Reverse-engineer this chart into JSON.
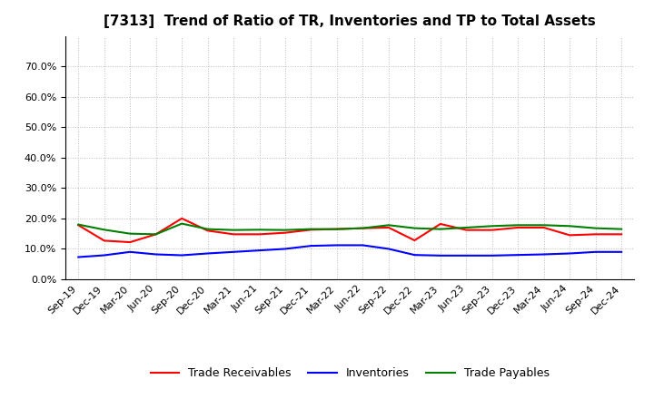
{
  "title": "[7313]  Trend of Ratio of TR, Inventories and TP to Total Assets",
  "x_labels": [
    "Sep-19",
    "Dec-19",
    "Mar-20",
    "Jun-20",
    "Sep-20",
    "Dec-20",
    "Mar-21",
    "Jun-21",
    "Sep-21",
    "Dec-21",
    "Mar-22",
    "Jun-22",
    "Sep-22",
    "Dec-22",
    "Mar-23",
    "Jun-23",
    "Sep-23",
    "Dec-23",
    "Mar-24",
    "Jun-24",
    "Sep-24",
    "Dec-24"
  ],
  "trade_receivables": [
    0.178,
    0.127,
    0.122,
    0.148,
    0.2,
    0.16,
    0.148,
    0.148,
    0.153,
    0.163,
    0.165,
    0.168,
    0.17,
    0.128,
    0.182,
    0.162,
    0.162,
    0.17,
    0.17,
    0.145,
    0.148,
    0.148
  ],
  "inventories": [
    0.073,
    0.079,
    0.09,
    0.082,
    0.079,
    0.085,
    0.09,
    0.095,
    0.1,
    0.11,
    0.112,
    0.112,
    0.1,
    0.08,
    0.078,
    0.078,
    0.078,
    0.08,
    0.082,
    0.085,
    0.09,
    0.09
  ],
  "trade_payables": [
    0.18,
    0.163,
    0.15,
    0.148,
    0.183,
    0.165,
    0.162,
    0.163,
    0.162,
    0.165,
    0.165,
    0.168,
    0.178,
    0.168,
    0.165,
    0.17,
    0.175,
    0.178,
    0.178,
    0.175,
    0.168,
    0.165
  ],
  "tr_color": "#ff0000",
  "inv_color": "#0000ff",
  "tp_color": "#008000",
  "ylim": [
    0.0,
    0.8
  ],
  "yticks": [
    0.0,
    0.1,
    0.2,
    0.3,
    0.4,
    0.5,
    0.6,
    0.7
  ],
  "background_color": "#ffffff",
  "grid_color": "#bbbbbb",
  "title_fontsize": 11,
  "tick_fontsize": 8,
  "legend_fontsize": 9
}
